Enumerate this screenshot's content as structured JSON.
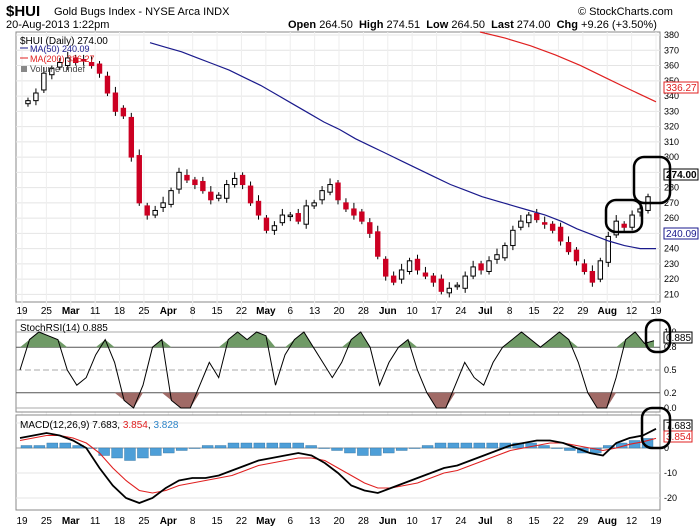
{
  "header": {
    "symbol": "$HUI",
    "name": "Gold Bugs Index - NYSE Arca INDX",
    "date": "20-Aug-2013 1:22pm",
    "copyright": "© StockCharts.com",
    "open_label": "Open",
    "open": "264.50",
    "high_label": "High",
    "high": "274.51",
    "low_label": "Low",
    "low": "264.50",
    "last_label": "Last",
    "last": "274.00",
    "chg_label": "Chg",
    "chg": "+9.26 (+3.50%)"
  },
  "legend": {
    "main": "$HUI (Daily) 274.00",
    "ma50": "MA(50) 240.09",
    "ma200": "MA(200) 336.27",
    "volume": "Volume undef"
  },
  "colors": {
    "up": "#ffffff",
    "down": "#cc0022",
    "ma50": "#1a1a8c",
    "ma200": "#e02020",
    "stoch_fill_high": "#6f9a66",
    "stoch_fill_low": "#a06a66",
    "hist": "#4e9fd8",
    "macd": "#000000",
    "signal": "#e02020"
  },
  "price_axis": {
    "labels": [
      "380",
      "370",
      "360",
      "350",
      "340",
      "330",
      "320",
      "310",
      "300",
      "290",
      "280",
      "270",
      "260",
      "250",
      "240",
      "230",
      "220",
      "210"
    ],
    "last_tag": "274.00",
    "ma50_tag": "240.09",
    "ma200_tag": "336.27"
  },
  "stoch": {
    "label": "StochRSI(14) 0.885",
    "axis_labels": [
      "1.0",
      "0.8",
      "0.5",
      "0.2",
      "0.0"
    ],
    "tag": "0.885"
  },
  "macd": {
    "label_prefix": "MACD(12,26,9)",
    "macd_value": "7.683",
    "signal_value": "3.854",
    "hist_value": "3.828",
    "axis_labels": [
      "10",
      "0",
      "-10",
      "-20"
    ],
    "tag_macd": "7.683",
    "tag_signal": "3.854"
  },
  "xaxis": {
    "labels": [
      "19",
      "25",
      "Mar",
      "11",
      "18",
      "25",
      "Apr",
      "8",
      "15",
      "22",
      "May",
      "6",
      "13",
      "20",
      "28",
      "Jun",
      "10",
      "17",
      "24",
      "Jul",
      "8",
      "15",
      "22",
      "29",
      "Aug",
      "12",
      "19"
    ]
  },
  "chart_data": {
    "type": "candlestick",
    "title": "$HUI (Daily)",
    "ylim": [
      205,
      382
    ],
    "close_levels": [
      337,
      342,
      355,
      358,
      362,
      365,
      362,
      363,
      360,
      355,
      342,
      330,
      327,
      300,
      270,
      262,
      265,
      270,
      278,
      290,
      285,
      282,
      278,
      272,
      275,
      282,
      286,
      282,
      270,
      262,
      252,
      255,
      262,
      262,
      258,
      268,
      270,
      278,
      282,
      272,
      266,
      262,
      258,
      250,
      235,
      222,
      218,
      226,
      232,
      226,
      222,
      218,
      212,
      214,
      216,
      222,
      228,
      226,
      232,
      236,
      242,
      252,
      258,
      262,
      259,
      256,
      252,
      245,
      238,
      232,
      225,
      218,
      232,
      248,
      258,
      254,
      262,
      266,
      274
    ],
    "ma50": [
      375,
      372,
      369,
      365,
      361,
      357,
      352,
      347,
      341,
      335,
      329,
      323,
      318,
      312,
      307,
      302,
      297,
      292,
      287,
      282,
      278,
      274,
      271,
      268,
      265,
      262,
      258,
      253,
      249,
      245,
      242,
      240,
      240
    ],
    "ma200": [
      382,
      378,
      373,
      367,
      360,
      352,
      344,
      336.27
    ],
    "stoch_rsi": [
      0.5,
      0.9,
      1,
      0.95,
      0.9,
      0.5,
      0.3,
      0.4,
      0.7,
      0.9,
      0.6,
      0.1,
      0.0,
      0.3,
      0.8,
      0.9,
      0.1,
      0.0,
      0.0,
      0.3,
      0.6,
      0.4,
      0.9,
      1,
      0.9,
      1,
      0.95,
      0.3,
      0.7,
      0.9,
      1,
      0.8,
      0.6,
      0.4,
      0.6,
      0.9,
      1,
      0.8,
      0.3,
      0.6,
      0.8,
      0.9,
      0.5,
      0.2,
      0.0,
      0.0,
      0.3,
      0.6,
      0.4,
      0.3,
      0.6,
      0.8,
      0.9,
      1,
      0.9,
      0.8,
      0.9,
      1,
      0.9,
      0.6,
      0.2,
      0.0,
      0.0,
      0.4,
      0.9,
      1,
      0.85,
      0.885
    ],
    "macd_line": [
      4,
      5,
      6,
      5,
      3,
      0,
      -8,
      -15,
      -20,
      -22,
      -20,
      -16,
      -13,
      -12,
      -12,
      -11,
      -9,
      -7,
      -5,
      -4,
      -3,
      -2,
      -3,
      -6,
      -10,
      -15,
      -17,
      -18,
      -16,
      -14,
      -12,
      -10,
      -8,
      -7,
      -5,
      -3,
      -1,
      1,
      2,
      3,
      3,
      2,
      0,
      -2,
      -3,
      2,
      4,
      5,
      7.683
    ],
    "signal_line": [
      3,
      4,
      5,
      5,
      4,
      2,
      -2,
      -8,
      -13,
      -17,
      -18,
      -17,
      -15,
      -14,
      -13,
      -12,
      -11,
      -9,
      -7,
      -6,
      -5,
      -4,
      -4,
      -5,
      -8,
      -11,
      -14,
      -16,
      -16,
      -15,
      -14,
      -12,
      -10,
      -9,
      -7,
      -5,
      -3,
      -1,
      0,
      1,
      2,
      2,
      1,
      0,
      -1,
      0,
      1.5,
      2.5,
      3.854
    ],
    "histogram": [
      1,
      1,
      2,
      2,
      1,
      0,
      -3,
      -4,
      -5,
      -4,
      -3,
      -2,
      -1,
      0,
      1,
      1,
      2,
      2,
      2,
      2,
      2,
      2,
      1,
      0,
      -1,
      -2,
      -3,
      -3,
      -2,
      -1,
      0,
      1,
      2,
      2,
      2,
      2,
      2,
      2,
      2,
      2,
      1,
      0,
      -1,
      -2,
      -2,
      1,
      2,
      3,
      3.828
    ]
  }
}
